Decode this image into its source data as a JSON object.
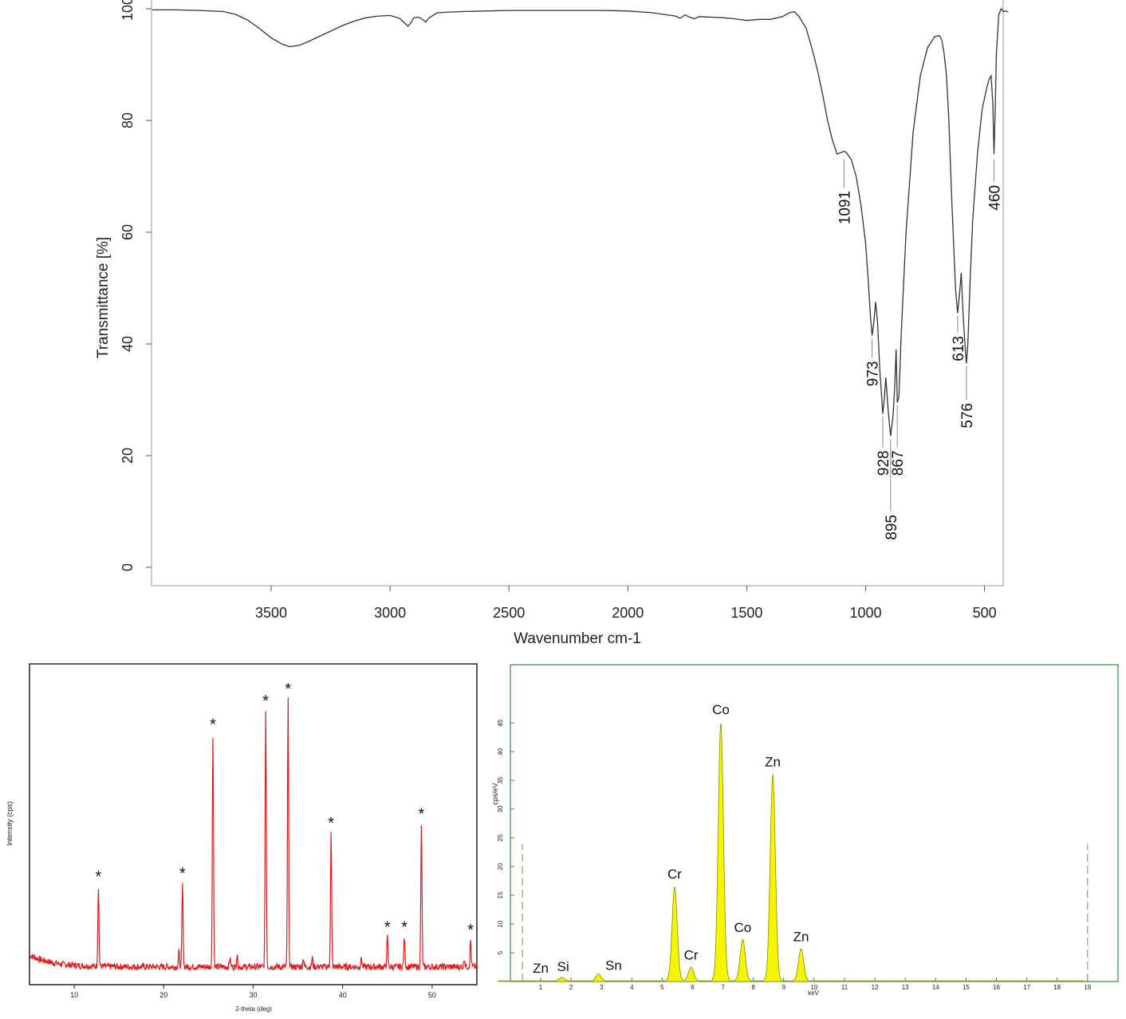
{
  "charts": [
    {
      "type": "line",
      "xlabel": "Wavenumber cm-1",
      "ylabel": "Transmittance [%]",
      "xlim": [
        4000,
        400
      ],
      "ylim": [
        -3,
        100
      ],
      "x_ticks": [
        3500,
        3000,
        2500,
        2000,
        1500,
        1000,
        500
      ],
      "y_ticks": [
        0,
        20,
        40,
        60,
        80,
        100
      ],
      "line_color": "#333333",
      "series": [
        {
          "x": [
            4000,
            3900,
            3800,
            3700,
            3650,
            3600,
            3550,
            3500,
            3450,
            3420,
            3380,
            3350,
            3300,
            3250,
            3200,
            3150,
            3100,
            3050,
            3000,
            2960,
            2940,
            2925,
            2915,
            2900,
            2880,
            2860,
            2850,
            2840,
            2820,
            2800,
            2700,
            2600,
            2500,
            2400,
            2300,
            2200,
            2100,
            2000,
            1900,
            1800,
            1780,
            1760,
            1740,
            1720,
            1700,
            1650,
            1600,
            1550,
            1500,
            1450,
            1400,
            1350,
            1320,
            1300,
            1280,
            1250,
            1220,
            1200,
            1180,
            1160,
            1140,
            1120,
            1100,
            1091,
            1080,
            1060,
            1040,
            1020,
            1000,
            990,
            980,
            973,
            965,
            958,
            950,
            940,
            935,
            928,
            922,
            915,
            905,
            895,
            885,
            878,
            872,
            867,
            860,
            850,
            830,
            800,
            770,
            740,
            710,
            690,
            680,
            670,
            660,
            650,
            640,
            630,
            622,
            613,
            605,
            598,
            590,
            583,
            576,
            570,
            560,
            550,
            530,
            510,
            490,
            480,
            472,
            465,
            460,
            455,
            450,
            440,
            430,
            420,
            410,
            400
          ],
          "y": [
            99.8,
            99.8,
            99.7,
            99.5,
            99.0,
            98.0,
            96.5,
            94.8,
            93.6,
            93.2,
            93.5,
            94.0,
            95.0,
            96.0,
            97.0,
            97.8,
            98.4,
            98.7,
            98.8,
            98.3,
            97.5,
            96.9,
            97.3,
            98.4,
            98.5,
            98.0,
            97.6,
            98.2,
            98.8,
            99.3,
            99.5,
            99.6,
            99.7,
            99.7,
            99.7,
            99.7,
            99.7,
            99.6,
            99.3,
            98.7,
            98.3,
            98.9,
            98.5,
            98.2,
            98.6,
            98.5,
            98.4,
            98.2,
            97.9,
            98.1,
            98.1,
            98.6,
            99.3,
            99.5,
            98.6,
            96.5,
            92.0,
            88.5,
            84.5,
            80.0,
            76.5,
            74.0,
            74.3,
            74.5,
            74.2,
            73.0,
            70.0,
            65.0,
            58.0,
            52.0,
            45.0,
            41.5,
            44.0,
            47.5,
            44.0,
            35.0,
            32.0,
            27.5,
            30.0,
            34.0,
            28.0,
            23.5,
            27.0,
            32.0,
            39.0,
            29.5,
            30.5,
            42.0,
            60.0,
            78.0,
            88.0,
            93.0,
            95.0,
            95.2,
            94.5,
            92.0,
            88.0,
            80.0,
            68.0,
            58.0,
            50.0,
            45.5,
            49.0,
            52.7,
            45.0,
            40.5,
            36.5,
            40.0,
            52.0,
            62.0,
            74.0,
            82.0,
            86.0,
            87.5,
            88.0,
            83.0,
            74.0,
            82.0,
            92.0,
            99.0,
            100.0,
            99.5,
            99.6,
            99.4
          ]
        }
      ],
      "annotations": [
        {
          "label": "1091",
          "x": 1091,
          "line_from": 73,
          "line_to": 68
        },
        {
          "label": "973",
          "x": 973,
          "line_from": 41,
          "line_to": 37.5
        },
        {
          "label": "928",
          "x": 928,
          "line_from": 27,
          "line_to": 21.5
        },
        {
          "label": "895",
          "x": 895,
          "line_from": 23,
          "line_to": 10
        },
        {
          "label": "867",
          "x": 867,
          "line_from": 29,
          "line_to": 21.5
        },
        {
          "label": "613",
          "x": 613,
          "line_from": 45,
          "line_to": 42
        },
        {
          "label": "576",
          "x": 576,
          "line_from": 36,
          "line_to": 30
        },
        {
          "label": "460",
          "x": 460,
          "line_from": 73,
          "line_to": 69
        }
      ]
    },
    {
      "type": "line",
      "xlabel": "2-theta (deg)",
      "ylabel": "Intensity (cps)",
      "xlim": [
        5,
        55
      ],
      "ylim": [
        0,
        100
      ],
      "x_ticks": [
        10,
        20,
        30,
        40,
        50
      ],
      "line_color": "#e01b1b",
      "baseline": 6,
      "peaks": [
        {
          "x": 12.7,
          "height": 27,
          "star": true
        },
        {
          "x": 21.7,
          "height": 5,
          "star": false
        },
        {
          "x": 22.1,
          "height": 28,
          "star": true
        },
        {
          "x": 25.5,
          "height": 78,
          "star": true
        },
        {
          "x": 27.4,
          "height": 3,
          "star": false
        },
        {
          "x": 28.2,
          "height": 4,
          "star": false
        },
        {
          "x": 31.4,
          "height": 86,
          "star": true
        },
        {
          "x": 33.9,
          "height": 90,
          "star": true
        },
        {
          "x": 35.6,
          "height": 3,
          "star": false
        },
        {
          "x": 36.6,
          "height": 3,
          "star": false
        },
        {
          "x": 38.7,
          "height": 45,
          "star": true
        },
        {
          "x": 42.1,
          "height": 3,
          "star": false
        },
        {
          "x": 45.0,
          "height": 10,
          "star": true
        },
        {
          "x": 46.9,
          "height": 10,
          "star": true
        },
        {
          "x": 48.8,
          "height": 48,
          "star": true
        },
        {
          "x": 53.6,
          "height": 3,
          "star": false
        },
        {
          "x": 54.3,
          "height": 9,
          "star": true
        }
      ],
      "star_label": "*"
    },
    {
      "type": "area",
      "xlabel": "keV",
      "ylabel": "cps/eV",
      "xlim": [
        -0.9,
        19.9
      ],
      "ylim": [
        0,
        50
      ],
      "x_ticks": [
        1,
        2,
        3,
        4,
        5,
        6,
        7,
        8,
        9,
        10,
        11,
        12,
        13,
        14,
        15,
        16,
        17,
        18,
        19
      ],
      "y_ticks": [
        5,
        10,
        15,
        20,
        25,
        30,
        35,
        40,
        45
      ],
      "fill_color": "#f5f500",
      "frame_color": "#3c8a3c",
      "peaks": [
        {
          "x": 1.7,
          "height": 0.6
        },
        {
          "x": 2.9,
          "height": 1.2
        },
        {
          "x": 5.41,
          "height": 16.4
        },
        {
          "x": 5.95,
          "height": 2.4
        },
        {
          "x": 6.93,
          "height": 45.0
        },
        {
          "x": 7.65,
          "height": 7.2
        },
        {
          "x": 8.64,
          "height": 36.0
        },
        {
          "x": 9.57,
          "height": 5.6
        }
      ],
      "labels": [
        {
          "text": "Zn",
          "x": 1.0,
          "y": 1.5
        },
        {
          "text": "Si",
          "x": 1.74,
          "y": 1.8
        },
        {
          "text": "Sn",
          "x": 3.4,
          "y": 2.0
        },
        {
          "text": "Cr",
          "x": 5.41,
          "y": 17.9
        },
        {
          "text": "Cr",
          "x": 5.95,
          "y": 3.8
        },
        {
          "text": "Co",
          "x": 6.93,
          "y": 46.5
        },
        {
          "text": "Co",
          "x": 7.65,
          "y": 8.6
        },
        {
          "text": "Zn",
          "x": 8.64,
          "y": 37.4
        },
        {
          "text": "Zn",
          "x": 9.57,
          "y": 7.0
        }
      ],
      "markers": [
        0.4,
        19.0
      ]
    }
  ]
}
